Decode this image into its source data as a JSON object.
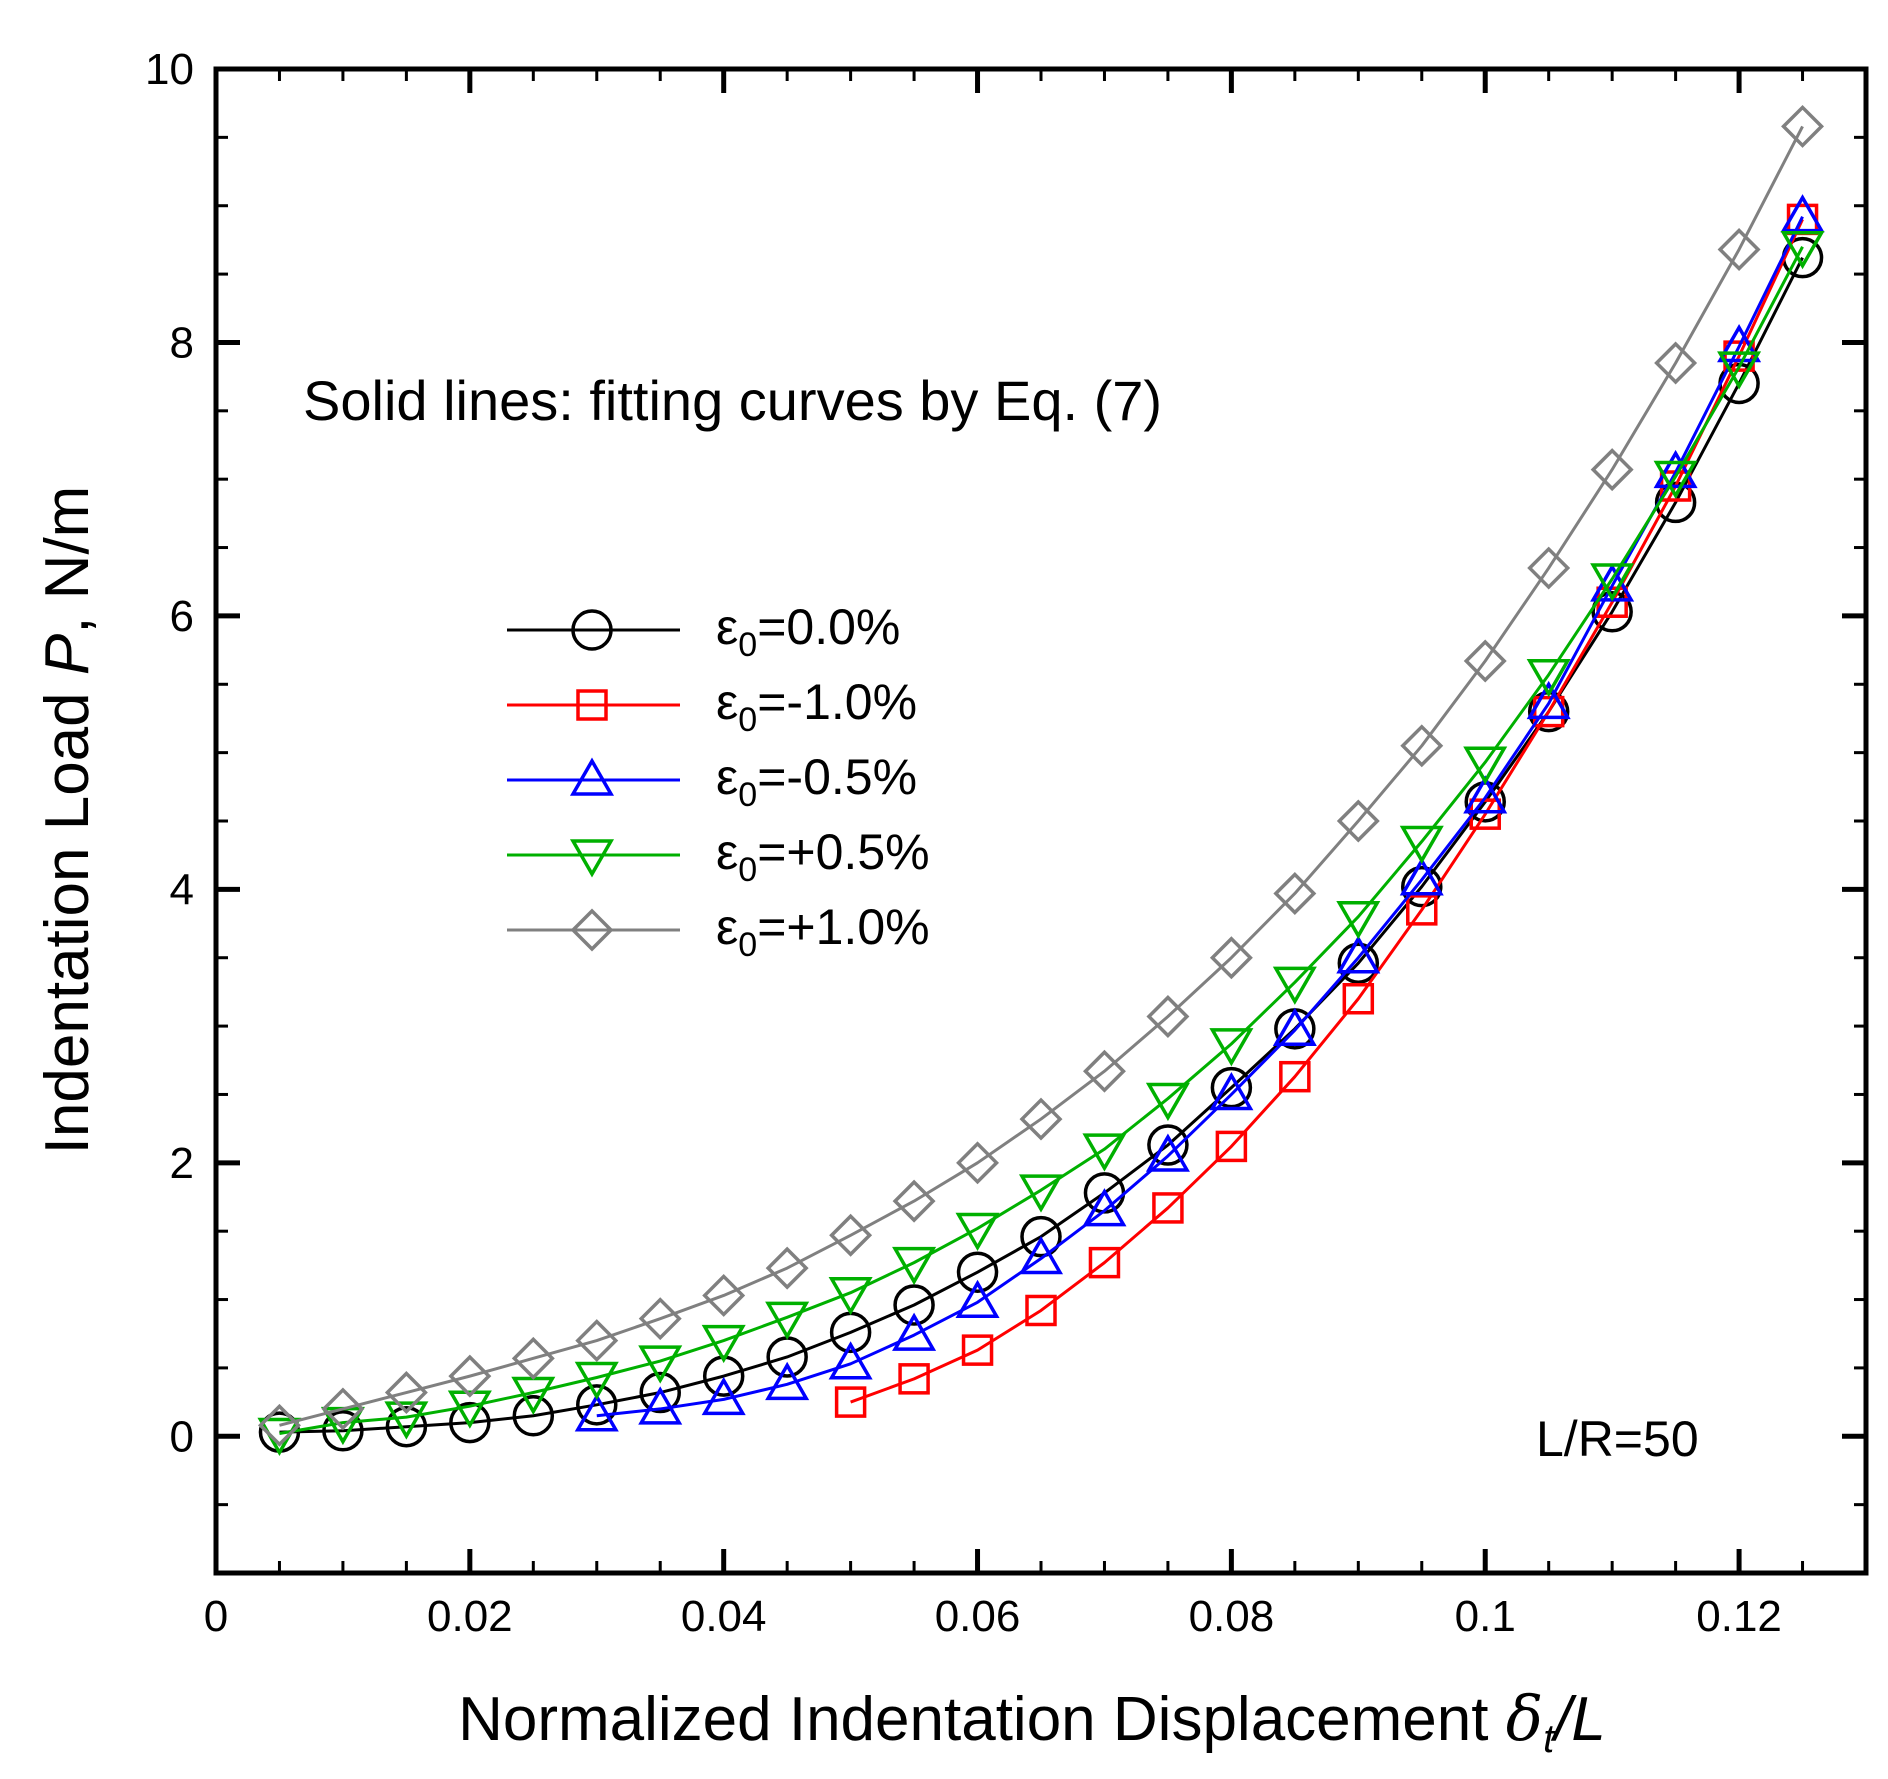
{
  "chart_data": {
    "type": "line",
    "title": "",
    "xlabel": "Normalized Indentation Displacement δt/L",
    "xlabel_parts": {
      "text": "Normalized Indentation Displacement ",
      "symbol": "δ",
      "sub": "t",
      "tail": "/L"
    },
    "ylabel": "Indentation Load P, N/m",
    "ylabel_parts": {
      "text": "Indentation Load ",
      "symbol": "P",
      "tail": ", N/m"
    },
    "xlim": [
      0,
      0.13
    ],
    "ylim": [
      -1,
      10
    ],
    "xticks": [
      0,
      0.02,
      0.04,
      0.06,
      0.08,
      0.1,
      0.12
    ],
    "xtick_labels": [
      "0",
      "0.02",
      "0.04",
      "0.06",
      "0.08",
      "0.1",
      "0.12"
    ],
    "yticks": [
      0,
      2,
      4,
      6,
      8,
      10
    ],
    "ytick_labels": [
      "0",
      "2",
      "4",
      "6",
      "8",
      "10"
    ],
    "grid": false,
    "legend_placement": "center-left",
    "annotations": [
      "Solid lines: fitting curves by Eq. (7)",
      "L/R=50"
    ],
    "series": [
      {
        "name": "ε0=0.0%",
        "symbol": "ε",
        "sub": "0",
        "value_text": "=0.0%",
        "color": "#000000",
        "marker": "circle",
        "x": [
          0.005,
          0.01,
          0.015,
          0.02,
          0.025,
          0.03,
          0.035,
          0.04,
          0.045,
          0.05,
          0.055,
          0.06,
          0.065,
          0.07,
          0.075,
          0.08,
          0.085,
          0.09,
          0.095,
          0.1,
          0.105,
          0.11,
          0.115,
          0.12,
          0.125
        ],
        "y": [
          0.03,
          0.04,
          0.07,
          0.1,
          0.15,
          0.23,
          0.32,
          0.44,
          0.58,
          0.76,
          0.96,
          1.2,
          1.46,
          1.78,
          2.13,
          2.55,
          2.98,
          3.46,
          4.02,
          4.64,
          5.3,
          6.03,
          6.83,
          7.7,
          8.62
        ]
      },
      {
        "name": "ε0=-1.0%",
        "symbol": "ε",
        "sub": "0",
        "value_text": "=-1.0%",
        "color": "#ff0000",
        "marker": "square",
        "x": [
          0.05,
          0.055,
          0.06,
          0.065,
          0.07,
          0.075,
          0.08,
          0.085,
          0.09,
          0.095,
          0.1,
          0.105,
          0.11,
          0.115,
          0.12,
          0.125
        ],
        "y": [
          0.25,
          0.42,
          0.63,
          0.92,
          1.27,
          1.67,
          2.12,
          2.63,
          3.2,
          3.85,
          4.55,
          5.3,
          6.1,
          6.95,
          7.9,
          8.9
        ]
      },
      {
        "name": "ε0=-0.5%",
        "symbol": "ε",
        "sub": "0",
        "value_text": "=-0.5%",
        "color": "#0000ff",
        "marker": "triangle-up",
        "x": [
          0.03,
          0.035,
          0.04,
          0.045,
          0.05,
          0.055,
          0.06,
          0.065,
          0.07,
          0.075,
          0.08,
          0.085,
          0.09,
          0.095,
          0.1,
          0.105,
          0.11,
          0.115,
          0.12,
          0.125
        ],
        "y": [
          0.15,
          0.2,
          0.27,
          0.38,
          0.53,
          0.74,
          0.98,
          1.3,
          1.65,
          2.05,
          2.5,
          2.97,
          3.5,
          4.07,
          4.67,
          5.36,
          6.22,
          7.05,
          7.97,
          8.92
        ]
      },
      {
        "name": "ε0=+0.5%",
        "symbol": "ε",
        "sub": "0",
        "value_text": "=+0.5%",
        "color": "#00b000",
        "marker": "triangle-down",
        "x": [
          0.005,
          0.01,
          0.015,
          0.02,
          0.025,
          0.03,
          0.035,
          0.04,
          0.045,
          0.05,
          0.055,
          0.06,
          0.065,
          0.07,
          0.075,
          0.08,
          0.085,
          0.09,
          0.095,
          0.1,
          0.105,
          0.11,
          0.115,
          0.12,
          0.125
        ],
        "y": [
          0.02,
          0.1,
          0.14,
          0.22,
          0.32,
          0.43,
          0.55,
          0.7,
          0.87,
          1.05,
          1.27,
          1.52,
          1.8,
          2.1,
          2.47,
          2.87,
          3.32,
          3.8,
          4.35,
          4.93,
          5.57,
          6.27,
          7.02,
          7.82,
          8.7
        ]
      },
      {
        "name": "ε0=+1.0%",
        "symbol": "ε",
        "sub": "0",
        "value_text": "=+1.0%",
        "color": "#808080",
        "marker": "diamond",
        "x": [
          0.005,
          0.01,
          0.015,
          0.02,
          0.025,
          0.03,
          0.035,
          0.04,
          0.045,
          0.05,
          0.055,
          0.06,
          0.065,
          0.07,
          0.075,
          0.08,
          0.085,
          0.09,
          0.095,
          0.1,
          0.105,
          0.11,
          0.115,
          0.12,
          0.125
        ],
        "y": [
          0.08,
          0.2,
          0.32,
          0.44,
          0.57,
          0.7,
          0.86,
          1.03,
          1.23,
          1.47,
          1.72,
          2.0,
          2.32,
          2.67,
          3.07,
          3.5,
          3.97,
          4.5,
          5.05,
          5.67,
          6.35,
          7.07,
          7.85,
          8.68,
          9.58
        ]
      }
    ]
  }
}
